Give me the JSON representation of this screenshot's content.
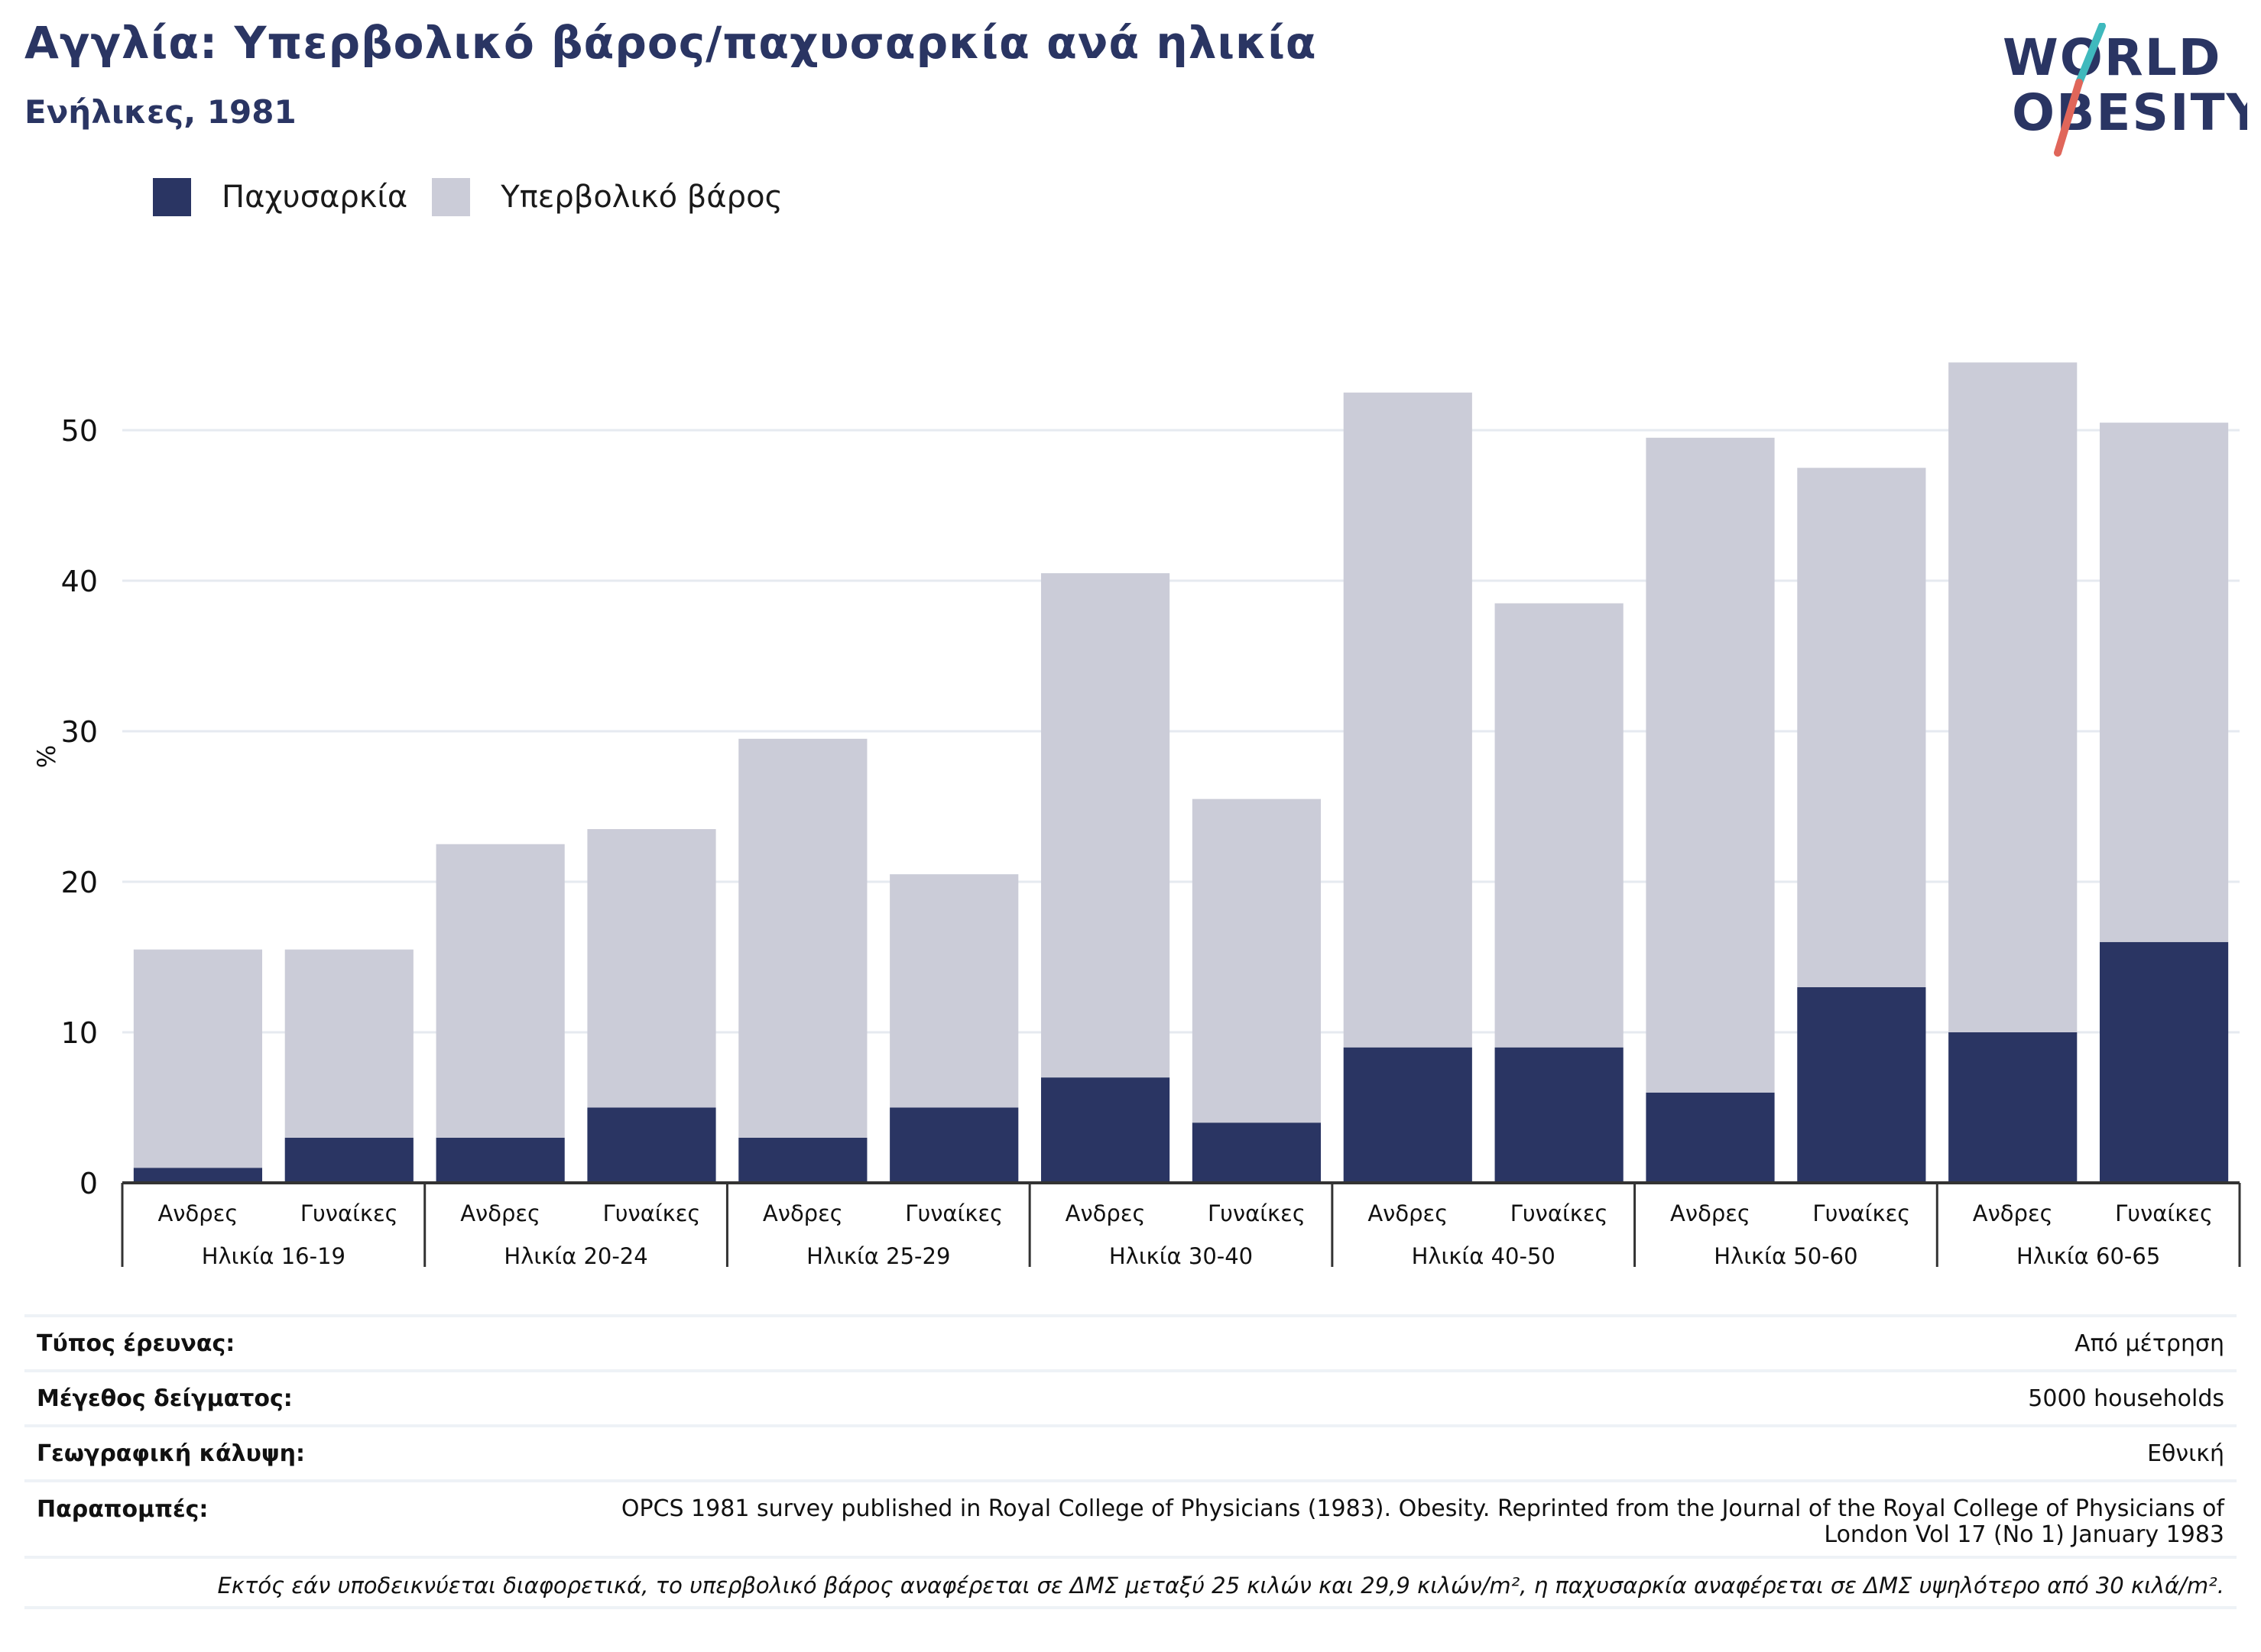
{
  "header": {
    "title": "Αγγλία: Υπερβολικό βάρος/παχυσαρκία ανά ηλικία",
    "subtitle": "Ενήλικες, 1981"
  },
  "logo": {
    "line1": "WORLD",
    "line2": "OBESITY"
  },
  "colors": {
    "obesity": "#2a3563",
    "overweight": "#cbccd8",
    "grid": "#e6eaf0",
    "axis": "#333333"
  },
  "chart_data": {
    "type": "bar",
    "stacked": true,
    "ylabel": "%",
    "ylim": [
      0,
      60
    ],
    "yticks": [
      0,
      10,
      20,
      30,
      40,
      50
    ],
    "grid": true,
    "legend_position": "top-left",
    "groups": [
      "Ηλικία 16-19",
      "Ηλικία 20-24",
      "Ηλικία 25-29",
      "Ηλικία 30-40",
      "Ηλικία 40-50",
      "Ηλικία 50-60",
      "Ηλικία 60-65"
    ],
    "subcategories": [
      "Ανδρες",
      "Γυναίκες"
    ],
    "series": [
      {
        "name": "Παχυσαρκία",
        "values": [
          1,
          3,
          3,
          5,
          3,
          5,
          7,
          4,
          9,
          9,
          6,
          13,
          10,
          16
        ]
      },
      {
        "name": "Υπερβολικό βάρος",
        "values": [
          14.5,
          12.5,
          19.5,
          18.5,
          26.5,
          15.5,
          33.5,
          21.5,
          43.5,
          29.5,
          43.5,
          34.5,
          44.5,
          34.5
        ]
      }
    ]
  },
  "meta": {
    "rows": [
      {
        "label": "Τύπος έρευνας:",
        "value": "Από μέτρηση"
      },
      {
        "label": "Μέγεθος δείγματος:",
        "value": "5000 households"
      },
      {
        "label": "Γεωγραφική κάλυψη:",
        "value": "Εθνική"
      },
      {
        "label": "Παραπομπές:",
        "value": "OPCS 1981 survey published in Royal College of Physicians (1983). Obesity. Reprinted from the Journal of the Royal College of Physicians of London Vol 17 (No 1) January 1983"
      }
    ],
    "note": "Εκτός εάν υποδεικνύεται διαφορετικά, το υπερβολικό βάρος αναφέρεται σε ΔΜΣ μεταξύ 25 κιλών και 29,9 κιλών/m², η παχυσαρκία αναφέρεται σε ΔΜΣ υψηλότερο από 30 κιλά/m²."
  }
}
